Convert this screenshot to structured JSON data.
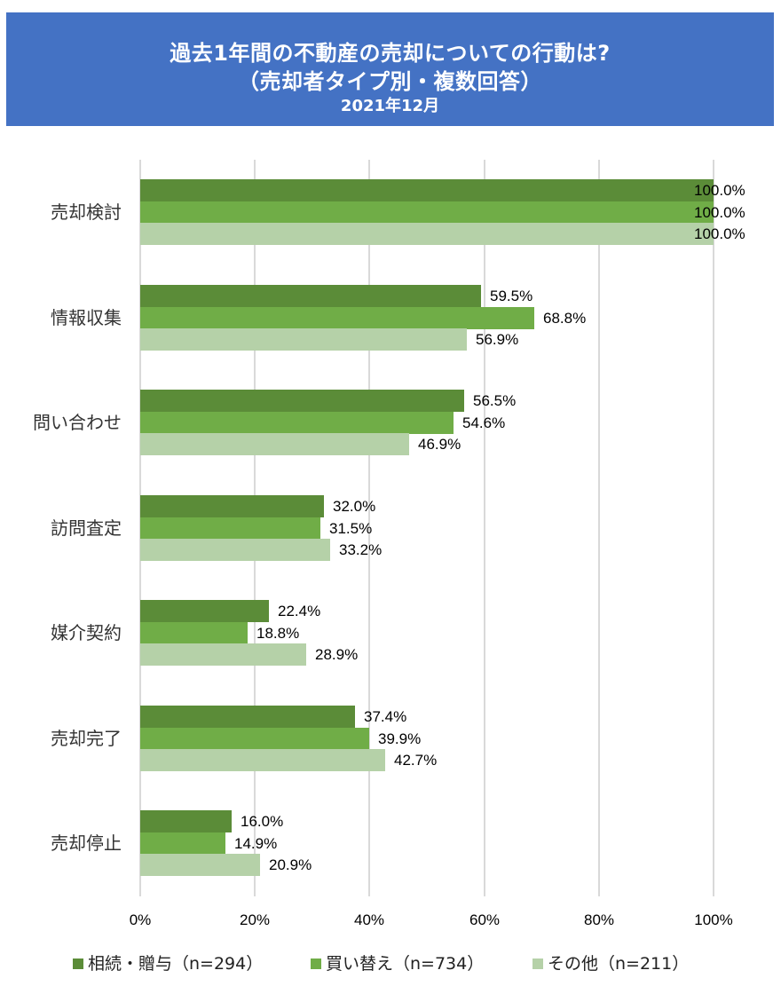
{
  "header": {
    "title_line1": "過去1年間の不動産の売却についての行動は?",
    "title_line2": "（売却者タイプ別・複数回答）",
    "date": "2021年12月",
    "background_color": "#4472C4"
  },
  "colors": {
    "series": [
      "#5B8C38",
      "#70AD47",
      "#B5D1A8"
    ],
    "grid": "#D9D9D9"
  },
  "legend": {
    "items": [
      {
        "label": "相続・贈与（n=294）",
        "color": "#5B8C38"
      },
      {
        "label": "買い替え（n=734）",
        "color": "#70AD47"
      },
      {
        "label": "その他（n=211）",
        "color": "#B5D1A8"
      }
    ]
  },
  "axis": {
    "ticks": [
      "0%",
      "20%",
      "40%",
      "60%",
      "80%",
      "100%"
    ]
  },
  "labels": {
    "cat": [
      "売却検討",
      "情報収集",
      "問い合わせ",
      "訪問査定",
      "媒介契約",
      "売却完了",
      "売却停止"
    ],
    "v": [
      [
        "100.0%",
        "100.0%",
        "100.0%"
      ],
      [
        "59.5%",
        "68.8%",
        "56.9%"
      ],
      [
        "56.5%",
        "54.6%",
        "46.9%"
      ],
      [
        "32.0%",
        "31.5%",
        "33.2%"
      ],
      [
        "22.4%",
        "18.8%",
        "28.9%"
      ],
      [
        "37.4%",
        "39.9%",
        "42.7%"
      ],
      [
        "16.0%",
        "14.9%",
        "20.9%"
      ]
    ]
  },
  "chart_data": {
    "type": "bar",
    "orientation": "horizontal",
    "title": "過去1年間の不動産の売却についての行動は?（売却者タイプ別・複数回答）",
    "subtitle": "2021年12月",
    "categories": [
      "売却検討",
      "情報収集",
      "問い合わせ",
      "訪問査定",
      "媒介契約",
      "売却完了",
      "売却停止"
    ],
    "series": [
      {
        "name": "相続・贈与（n=294）",
        "color": "#5B8C38",
        "values": [
          100.0,
          59.5,
          56.5,
          32.0,
          22.4,
          37.4,
          16.0
        ]
      },
      {
        "name": "買い替え（n=734）",
        "color": "#70AD47",
        "values": [
          100.0,
          68.8,
          54.6,
          31.5,
          18.8,
          39.9,
          14.9
        ]
      },
      {
        "name": "その他（n=211）",
        "color": "#B5D1A8",
        "values": [
          100.0,
          56.9,
          46.9,
          33.2,
          28.9,
          42.7,
          20.9
        ]
      }
    ],
    "xlabel": "",
    "ylabel": "",
    "xlim": [
      0,
      100
    ],
    "x_ticks": [
      "0%",
      "20%",
      "40%",
      "60%",
      "80%",
      "100%"
    ],
    "value_format": "0.0%",
    "grid": "vertical",
    "legend_position": "bottom"
  }
}
